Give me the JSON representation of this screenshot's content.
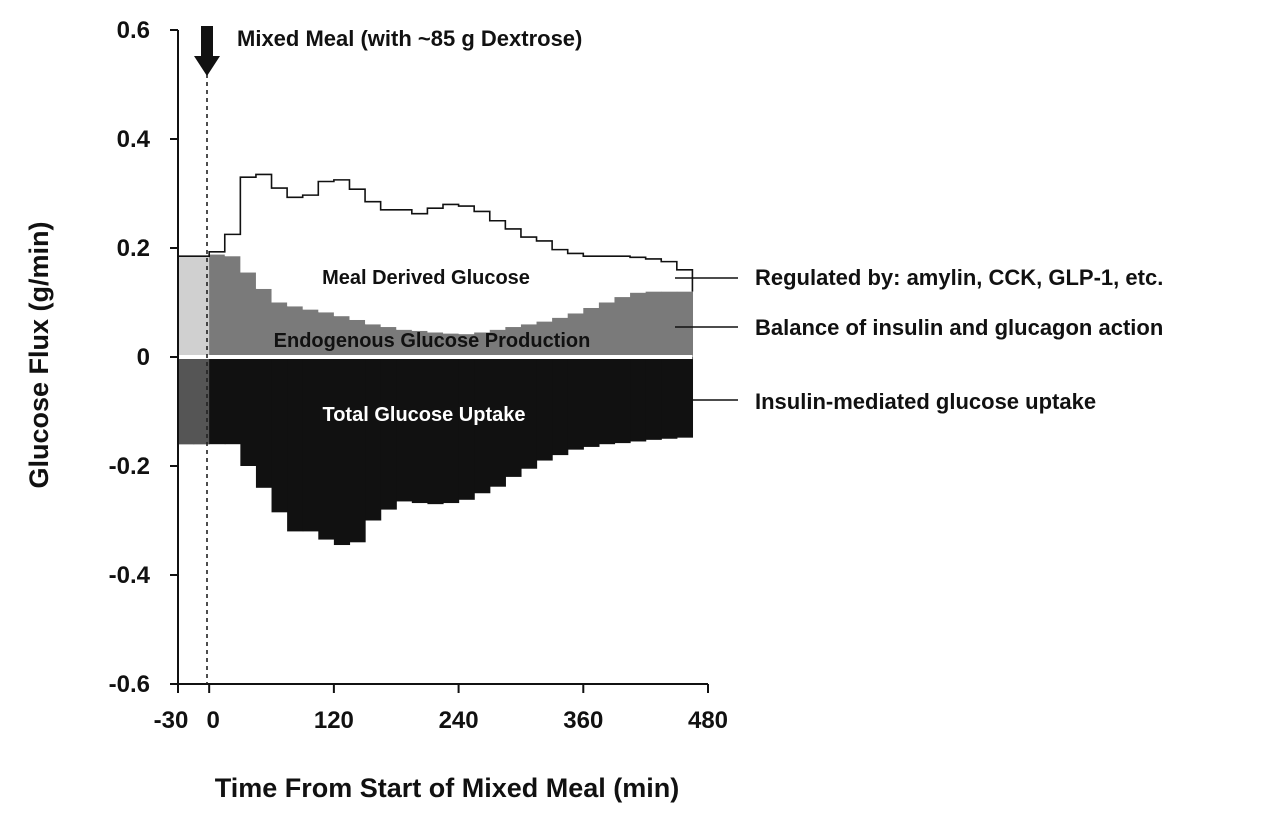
{
  "chart_data": {
    "type": "area",
    "xlabel": "Time From Start of Mixed Meal (min)",
    "ylabel": "Glucose Flux (g/min)",
    "xlim": [
      -30,
      480
    ],
    "ylim": [
      -0.6,
      0.6
    ],
    "x_ticks": [
      -30,
      0,
      120,
      240,
      360,
      480
    ],
    "x_tick_labels": [
      "-30",
      "0",
      "120",
      "240",
      "360",
      "480"
    ],
    "y_ticks": [
      0.6,
      0.4,
      0.2,
      0,
      -0.2,
      -0.4,
      -0.6
    ],
    "y_tick_labels": [
      "0.6",
      "0.4",
      "0.2",
      "0",
      "-0.2",
      "-0.4",
      "-0.6"
    ],
    "grid": false,
    "meal_marker": {
      "x": 0,
      "label": "Mixed Meal (with ~85 g Dextrose)"
    },
    "x": [
      -30,
      -15,
      0,
      15,
      30,
      45,
      60,
      75,
      90,
      105,
      120,
      135,
      150,
      165,
      180,
      195,
      210,
      225,
      240,
      255,
      270,
      285,
      300,
      315,
      330,
      345,
      360,
      375,
      390,
      405,
      420,
      435,
      450
    ],
    "series": [
      {
        "name": "Endogenous Glucose Production",
        "region_label": "Endogenous Glucose Production",
        "values": [
          0.185,
          0.185,
          0.188,
          0.185,
          0.155,
          0.125,
          0.1,
          0.093,
          0.087,
          0.082,
          0.075,
          0.068,
          0.06,
          0.055,
          0.05,
          0.048,
          0.045,
          0.043,
          0.042,
          0.045,
          0.05,
          0.055,
          0.06,
          0.065,
          0.072,
          0.08,
          0.09,
          0.1,
          0.11,
          0.118,
          0.12,
          0.12,
          0.12
        ],
        "color": "#7a7a7a"
      },
      {
        "name": "Meal Derived Glucose",
        "region_label": "Meal Derived Glucose",
        "values": [
          0,
          0,
          0.005,
          0.04,
          0.175,
          0.21,
          0.21,
          0.2,
          0.21,
          0.24,
          0.25,
          0.24,
          0.225,
          0.215,
          0.22,
          0.215,
          0.228,
          0.237,
          0.235,
          0.222,
          0.2,
          0.18,
          0.16,
          0.148,
          0.125,
          0.11,
          0.095,
          0.085,
          0.075,
          0.065,
          0.06,
          0.055,
          0.04
        ],
        "color": "#ffffff"
      },
      {
        "name": "Total Glucose Uptake",
        "region_label": "Total Glucose Uptake",
        "values": [
          -0.16,
          -0.16,
          -0.16,
          -0.16,
          -0.2,
          -0.24,
          -0.285,
          -0.32,
          -0.32,
          -0.335,
          -0.345,
          -0.34,
          -0.3,
          -0.28,
          -0.265,
          -0.268,
          -0.27,
          -0.268,
          -0.262,
          -0.25,
          -0.238,
          -0.22,
          -0.205,
          -0.19,
          -0.18,
          -0.17,
          -0.165,
          -0.16,
          -0.158,
          -0.155,
          -0.152,
          -0.15,
          -0.148
        ],
        "color": "#111111"
      }
    ],
    "annotations": [
      {
        "text": "Regulated by: amylin, CCK, GLP-1, etc.",
        "refers_to": "Meal Derived Glucose"
      },
      {
        "text": "Balance of insulin and glucagon action",
        "refers_to": "Endogenous Glucose Production"
      },
      {
        "text": "Insulin-mediated glucose uptake",
        "refers_to": "Total Glucose Uptake"
      }
    ]
  }
}
